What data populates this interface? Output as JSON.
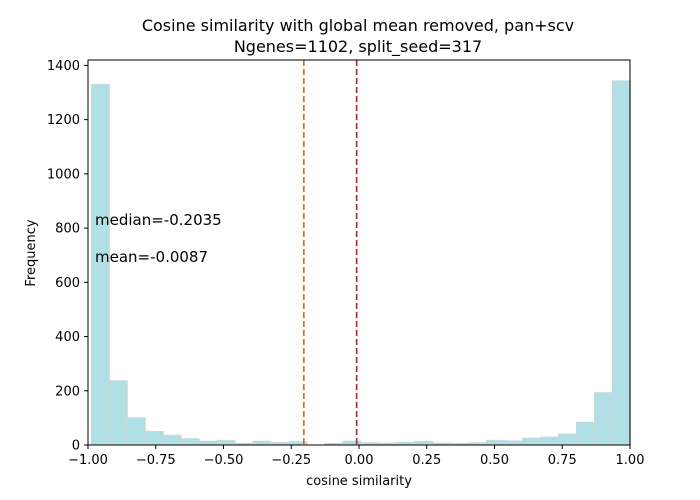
{
  "chart_data": {
    "type": "bar",
    "title_line1": "Cosine similarity with global mean removed, pan+scv",
    "title_line2": "Ngenes=1102, split_seed=317",
    "xlabel": "cosine similarity",
    "ylabel": "Frequency",
    "xlim": [
      -1.0,
      1.0
    ],
    "ylim": [
      0,
      1420
    ],
    "xticks": [
      -1.0,
      -0.75,
      -0.5,
      -0.25,
      0.0,
      0.25,
      0.5,
      0.75,
      1.0
    ],
    "xtick_labels": [
      "−1.00",
      "−0.75",
      "−0.50",
      "−0.25",
      "0.00",
      "0.25",
      "0.50",
      "0.75",
      "1.00"
    ],
    "yticks": [
      0,
      200,
      400,
      600,
      800,
      1000,
      1200,
      1400
    ],
    "ytick_labels": [
      "0",
      "200",
      "400",
      "600",
      "800",
      "1000",
      "1200",
      "1400"
    ],
    "grid": false,
    "bin_start": -0.9876,
    "bin_width": 0.0663,
    "counts": [
      1330,
      237,
      100,
      50,
      36,
      23,
      14,
      17,
      6,
      14,
      9,
      12,
      0,
      6,
      14,
      8,
      7,
      10,
      13,
      7,
      6,
      8,
      17,
      15,
      25,
      29,
      40,
      84,
      193,
      1343
    ],
    "bar_color": "#b0e0e6",
    "bar_edge_color": "#d3d3d3",
    "median": -0.2035,
    "mean": -0.0087,
    "median_label": "median=-0.2035",
    "mean_label": "mean=-0.0087",
    "median_color": "#d2691e",
    "mean_color": "#b22222"
  }
}
